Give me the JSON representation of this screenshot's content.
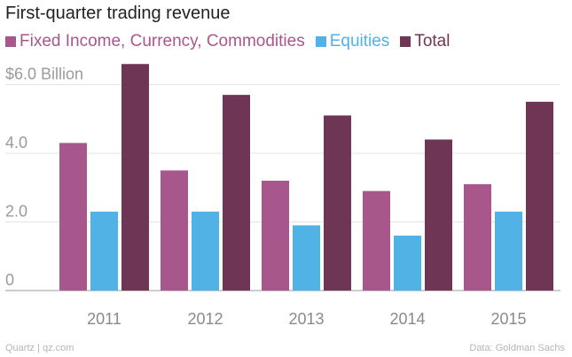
{
  "chart_data": {
    "type": "bar",
    "title": "First-quarter trading revenue",
    "categories": [
      "2011",
      "2012",
      "2013",
      "2014",
      "2015"
    ],
    "series": [
      {
        "name": "Fixed Income, Currency, Commodities",
        "color": "#a8578c",
        "values": [
          4.3,
          3.5,
          3.2,
          2.9,
          3.1
        ]
      },
      {
        "name": "Equities",
        "color": "#51b2e5",
        "values": [
          2.3,
          2.3,
          1.9,
          1.6,
          2.3
        ]
      },
      {
        "name": "Total",
        "color": "#6e3555",
        "values": [
          6.6,
          5.7,
          5.1,
          4.4,
          5.5
        ]
      }
    ],
    "yticks": [
      {
        "value": 0,
        "label": "0"
      },
      {
        "value": 2,
        "label": "2.0"
      },
      {
        "value": 4,
        "label": "4.0"
      },
      {
        "value": 6,
        "label": "$6.0 Billion"
      }
    ],
    "ylim": [
      0,
      7
    ],
    "grid": true,
    "legend_position": "top-left"
  },
  "footer": {
    "source_left": "Quartz | qz.com",
    "source_right": "Data: Goldman Sachs"
  }
}
